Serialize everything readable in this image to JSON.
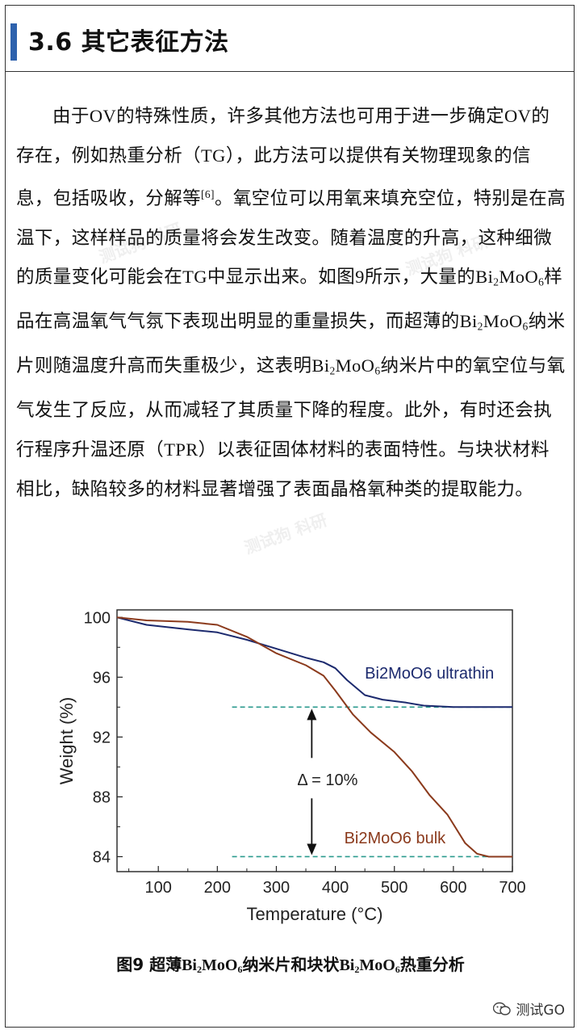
{
  "header": {
    "title": "3.6 其它表征方法"
  },
  "body": {
    "t1": "由于",
    "t2": "OV",
    "t3": "的特殊性质，许多其他方法也可用于进一步确定",
    "t4": "OV",
    "t5": "的存在，例如热重分析（",
    "t6": "TG",
    "t7": "），此方法可以提供有关物理现象的信息，包括吸收，分解等",
    "ref": "[6]",
    "t8": "。氧空位可以用氧来填充空位，特别是在高温下，这样样品的质量将会发生改变。随着温度的升高，这种细微的质量变化可能会在",
    "t9": "TG",
    "t10": "中显示出来。如图",
    "t11": "9",
    "t12": "所示，大量的",
    "t13": "样品在高温氧气气氛下表现出明显的重量损失，而超薄的",
    "t14": "纳米片则随温度升高而失重极少，这表明",
    "t15": "纳米片中的氧空位与氧气发生了反应，从而减轻了其质量下降的程度。此外，有时还会执行程序升温还原（",
    "t16": "TPR",
    "t17": "）以表征固体材料的表面特性。与块状材料相比，缺陷较多的材料显著增强了表面晶格氧种类的提取能力。",
    "formula": {
      "a": "Bi",
      "b": "2",
      "c": "MoO",
      "d": "6"
    }
  },
  "chart_data": {
    "type": "line",
    "xlabel": "Temperature (°C)",
    "ylabel": "Weight (%)",
    "xlim": [
      30,
      700
    ],
    "ylim": [
      83,
      100.5
    ],
    "xticks": [
      100,
      200,
      300,
      400,
      500,
      600,
      700
    ],
    "yticks": [
      84,
      88,
      92,
      96,
      100
    ],
    "series": [
      {
        "name": "Bi2MoO6 ultrathin",
        "color": "#1c2a6e",
        "x": [
          30,
          80,
          150,
          200,
          250,
          300,
          350,
          380,
          400,
          420,
          450,
          480,
          520,
          550,
          600,
          650,
          700
        ],
        "y": [
          100,
          99.5,
          99.2,
          99,
          98.5,
          97.9,
          97.3,
          97.0,
          96.6,
          95.8,
          94.8,
          94.5,
          94.3,
          94.1,
          94.0,
          94.0,
          94.0
        ]
      },
      {
        "name": "Bi2MoO6 bulk",
        "color": "#8b3a1c",
        "x": [
          30,
          80,
          150,
          200,
          250,
          300,
          350,
          380,
          400,
          430,
          460,
          500,
          530,
          560,
          590,
          620,
          640,
          660,
          700
        ],
        "y": [
          100,
          99.8,
          99.7,
          99.5,
          98.7,
          97.6,
          96.8,
          96.1,
          95.1,
          93.5,
          92.3,
          91.0,
          89.7,
          88.1,
          86.8,
          84.9,
          84.2,
          84.0,
          84.0
        ]
      }
    ],
    "reference_lines": [
      94,
      84
    ],
    "annotations": {
      "ultrathin_label": "Bi2MoO6 ultrathin",
      "bulk_label": "Bi2MoO6 bulk",
      "delta_label": "Δ = 10%"
    }
  },
  "caption": {
    "prefix": "图9 超薄",
    "mid": "纳米片和块状",
    "suffix": "热重分析"
  },
  "footer": {
    "brand": "测试GO"
  },
  "watermark": {
    "text": "测试狗 科研"
  }
}
